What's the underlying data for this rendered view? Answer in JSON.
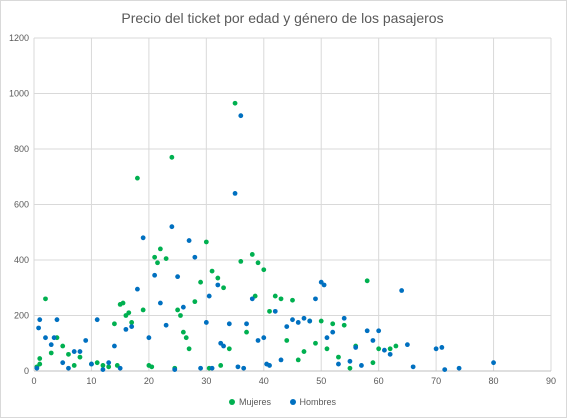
{
  "colors": {
    "mujeres": "#00b050",
    "hombres": "#0070c0",
    "grid": "#d9d9d9",
    "text": "#595959"
  },
  "chart_data": {
    "type": "scatter",
    "title": "Precio del ticket por edad y género de los pasajeros",
    "xlabel": "",
    "ylabel": "",
    "xlim": [
      0,
      90
    ],
    "ylim": [
      0,
      1200
    ],
    "x_ticks": [
      0,
      10,
      20,
      30,
      40,
      50,
      60,
      70,
      80,
      90
    ],
    "y_ticks": [
      0,
      200,
      400,
      600,
      800,
      1000,
      1200
    ],
    "grid": true,
    "legend_position": "bottom",
    "series": [
      {
        "name": "Mujeres",
        "color": "#00b050",
        "points": [
          [
            0.5,
            15
          ],
          [
            1,
            45
          ],
          [
            1,
            25
          ],
          [
            2,
            260
          ],
          [
            3,
            65
          ],
          [
            4,
            120
          ],
          [
            5,
            90
          ],
          [
            6,
            60
          ],
          [
            7,
            20
          ],
          [
            8,
            50
          ],
          [
            10,
            25
          ],
          [
            11,
            30
          ],
          [
            12,
            20
          ],
          [
            13,
            15
          ],
          [
            14,
            170
          ],
          [
            14.5,
            20
          ],
          [
            15,
            240
          ],
          [
            15.5,
            245
          ],
          [
            16,
            200
          ],
          [
            16.5,
            210
          ],
          [
            17,
            175
          ],
          [
            18,
            695
          ],
          [
            19,
            220
          ],
          [
            20,
            20
          ],
          [
            20.5,
            15
          ],
          [
            21,
            410
          ],
          [
            21.5,
            390
          ],
          [
            22,
            440
          ],
          [
            23,
            405
          ],
          [
            24,
            770
          ],
          [
            24.5,
            10
          ],
          [
            25,
            220
          ],
          [
            25.5,
            200
          ],
          [
            26,
            140
          ],
          [
            26.5,
            120
          ],
          [
            27,
            80
          ],
          [
            28,
            250
          ],
          [
            29,
            320
          ],
          [
            30,
            465
          ],
          [
            30.5,
            10
          ],
          [
            31,
            360
          ],
          [
            32,
            335
          ],
          [
            32.5,
            20
          ],
          [
            33,
            300
          ],
          [
            34,
            80
          ],
          [
            35,
            965
          ],
          [
            36,
            395
          ],
          [
            37,
            140
          ],
          [
            38,
            420
          ],
          [
            38.5,
            270
          ],
          [
            39,
            390
          ],
          [
            40,
            365
          ],
          [
            41,
            215
          ],
          [
            42,
            270
          ],
          [
            43,
            260
          ],
          [
            44,
            110
          ],
          [
            45,
            255
          ],
          [
            46,
            40
          ],
          [
            47,
            70
          ],
          [
            48,
            180
          ],
          [
            49,
            100
          ],
          [
            50,
            180
          ],
          [
            51,
            80
          ],
          [
            52,
            170
          ],
          [
            53,
            50
          ],
          [
            54,
            165
          ],
          [
            55,
            10
          ],
          [
            56,
            90
          ],
          [
            58,
            325
          ],
          [
            59,
            30
          ],
          [
            60,
            80
          ],
          [
            62,
            80
          ],
          [
            63,
            90
          ]
        ]
      },
      {
        "name": "Hombres",
        "color": "#0070c0",
        "points": [
          [
            0.5,
            10
          ],
          [
            0.8,
            155
          ],
          [
            1,
            185
          ],
          [
            2,
            120
          ],
          [
            3,
            95
          ],
          [
            3.5,
            120
          ],
          [
            4,
            185
          ],
          [
            5,
            30
          ],
          [
            6,
            10
          ],
          [
            7,
            70
          ],
          [
            8,
            70
          ],
          [
            9,
            110
          ],
          [
            10,
            25
          ],
          [
            11,
            185
          ],
          [
            12,
            5
          ],
          [
            13,
            30
          ],
          [
            14,
            90
          ],
          [
            15,
            10
          ],
          [
            16,
            150
          ],
          [
            17,
            160
          ],
          [
            18,
            295
          ],
          [
            19,
            480
          ],
          [
            20,
            120
          ],
          [
            21,
            345
          ],
          [
            22,
            245
          ],
          [
            23,
            165
          ],
          [
            24,
            520
          ],
          [
            24.5,
            5
          ],
          [
            25,
            340
          ],
          [
            26,
            230
          ],
          [
            27,
            470
          ],
          [
            28,
            410
          ],
          [
            29,
            10
          ],
          [
            30,
            175
          ],
          [
            30.5,
            270
          ],
          [
            31,
            10
          ],
          [
            32,
            310
          ],
          [
            32.5,
            100
          ],
          [
            33,
            90
          ],
          [
            34,
            170
          ],
          [
            35,
            640
          ],
          [
            35.5,
            15
          ],
          [
            36,
            920
          ],
          [
            36.5,
            10
          ],
          [
            37,
            170
          ],
          [
            38,
            260
          ],
          [
            39,
            110
          ],
          [
            40,
            120
          ],
          [
            40.5,
            25
          ],
          [
            41,
            20
          ],
          [
            42,
            215
          ],
          [
            43,
            40
          ],
          [
            44,
            160
          ],
          [
            45,
            185
          ],
          [
            46,
            175
          ],
          [
            47,
            190
          ],
          [
            48,
            180
          ],
          [
            49,
            260
          ],
          [
            50,
            320
          ],
          [
            50.5,
            310
          ],
          [
            51,
            120
          ],
          [
            52,
            140
          ],
          [
            53,
            25
          ],
          [
            54,
            190
          ],
          [
            55,
            35
          ],
          [
            56,
            85
          ],
          [
            57,
            20
          ],
          [
            58,
            145
          ],
          [
            59,
            110
          ],
          [
            60,
            145
          ],
          [
            61,
            75
          ],
          [
            62,
            60
          ],
          [
            64,
            290
          ],
          [
            65,
            95
          ],
          [
            66,
            15
          ],
          [
            70,
            80
          ],
          [
            71,
            85
          ],
          [
            71.5,
            5
          ],
          [
            74,
            10
          ],
          [
            80,
            30
          ]
        ]
      }
    ]
  }
}
